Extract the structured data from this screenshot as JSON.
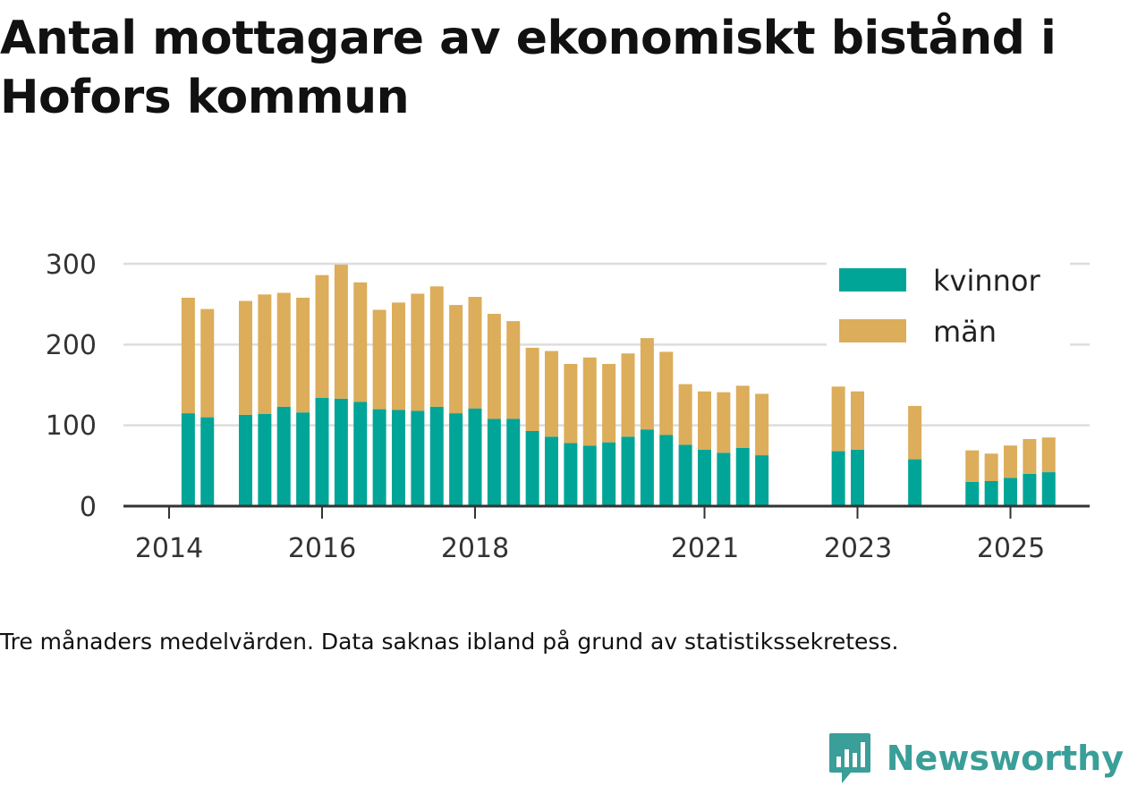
{
  "title": "Antal mottagare av ekonomiskt bistånd i Hofors kommun",
  "caption": "Tre månaders medelvärden. Data saknas ibland på grund av statistikssekretess.",
  "brand": {
    "name": "Newsworthy",
    "icon": "newsworthy-logo-icon",
    "color": "#3a9e99"
  },
  "colors": {
    "kvinnor": "#00a598",
    "man": "#dcad5a",
    "grid": "#dddddd",
    "axis": "#333333"
  },
  "chart_data": {
    "type": "bar",
    "stacked": true,
    "x_unit": "year (decimal, quarterly bars)",
    "x": [
      2014.25,
      2014.5,
      2015.0,
      2015.25,
      2015.5,
      2015.75,
      2016.0,
      2016.25,
      2016.5,
      2016.75,
      2017.0,
      2017.25,
      2017.5,
      2017.75,
      2018.0,
      2018.25,
      2018.5,
      2018.75,
      2019.0,
      2019.25,
      2019.5,
      2019.75,
      2020.0,
      2020.25,
      2020.5,
      2020.75,
      2021.0,
      2021.25,
      2021.5,
      2021.75,
      2022.75,
      2023.0,
      2023.75,
      2024.5,
      2024.75,
      2025.0,
      2025.25,
      2025.5
    ],
    "series": [
      {
        "name": "kvinnor",
        "values": [
          115,
          110,
          113,
          114,
          123,
          116,
          134,
          133,
          129,
          120,
          119,
          118,
          123,
          115,
          121,
          108,
          108,
          93,
          86,
          78,
          75,
          79,
          86,
          95,
          88,
          76,
          70,
          66,
          72,
          63,
          68,
          70,
          58,
          30,
          31,
          35,
          40,
          42
        ]
      },
      {
        "name": "män",
        "values": [
          143,
          134,
          141,
          148,
          141,
          142,
          152,
          166,
          148,
          123,
          133,
          145,
          149,
          134,
          138,
          130,
          121,
          103,
          106,
          98,
          109,
          97,
          103,
          113,
          103,
          75,
          72,
          75,
          77,
          76,
          80,
          72,
          66,
          39,
          34,
          40,
          43,
          43
        ]
      }
    ],
    "xticks": [
      "2014",
      "2016",
      "2018",
      "2021",
      "2023",
      "2025"
    ],
    "yticks": [
      "0",
      "100",
      "200",
      "300"
    ],
    "ylim": [
      0,
      300
    ],
    "grid": true,
    "legend": "top-right"
  }
}
